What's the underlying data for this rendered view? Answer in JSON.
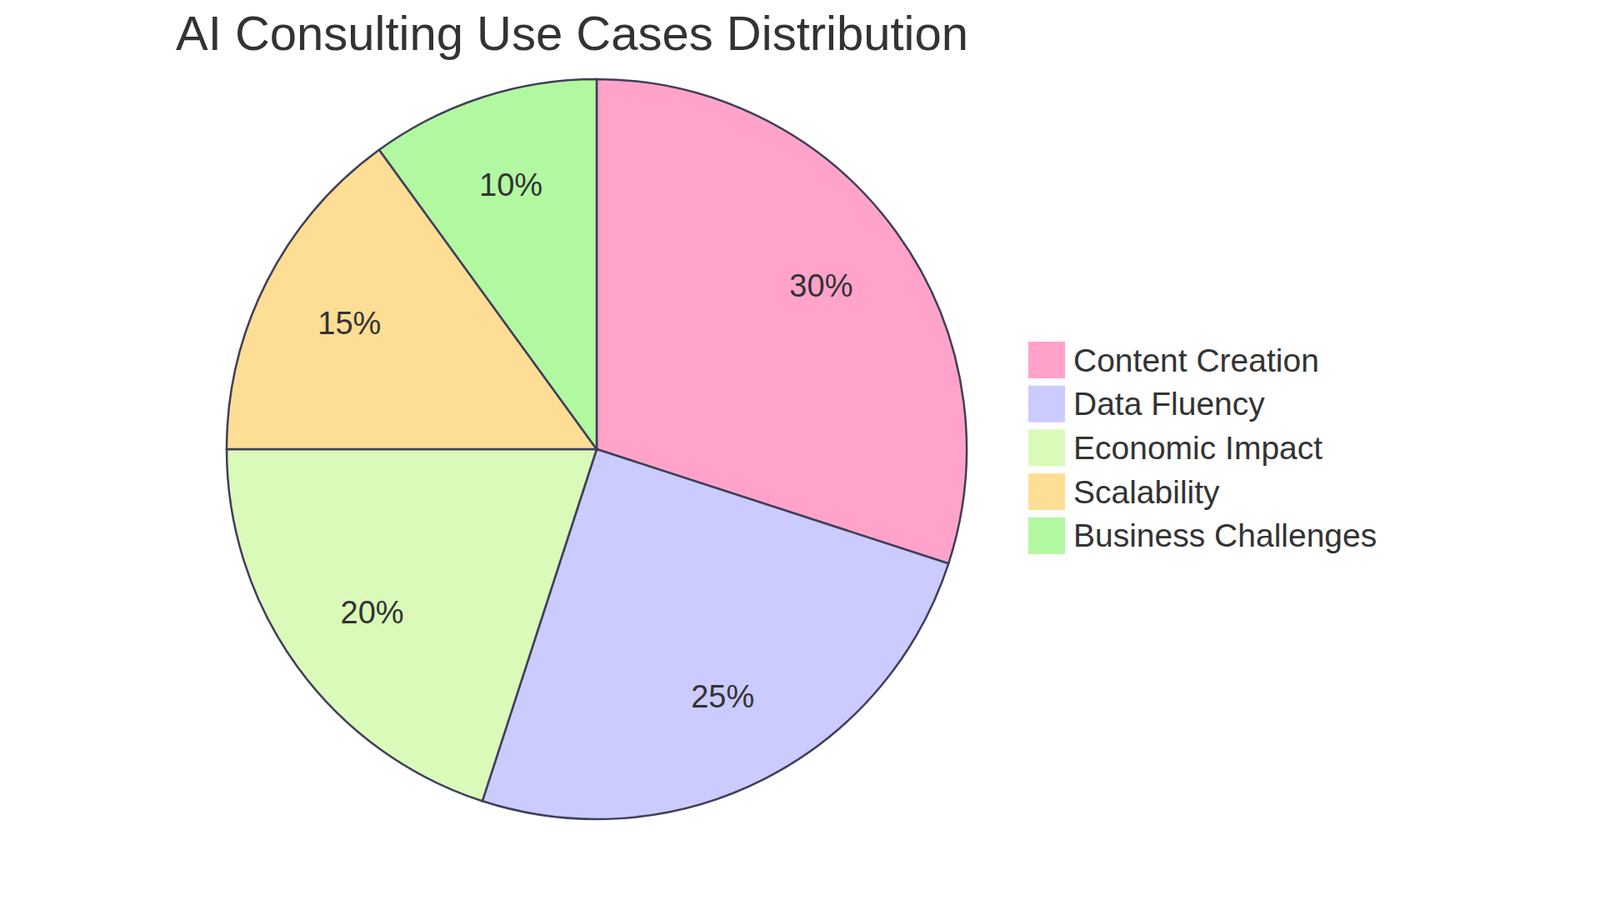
{
  "chart_data": {
    "type": "pie",
    "title": "AI Consulting Use Cases Distribution",
    "categories": [
      "Content Creation",
      "Data Fluency",
      "Economic Impact",
      "Scalability",
      "Business Challenges"
    ],
    "values": [
      30,
      25,
      20,
      15,
      10
    ],
    "value_labels": [
      "30%",
      "25%",
      "20%",
      "15%",
      "10%"
    ],
    "colors": [
      "#ffa3cb",
      "#cbcbfe",
      "#dafab9",
      "#fedd94",
      "#b2f8a0"
    ],
    "data_labels": true,
    "legend": "right"
  }
}
